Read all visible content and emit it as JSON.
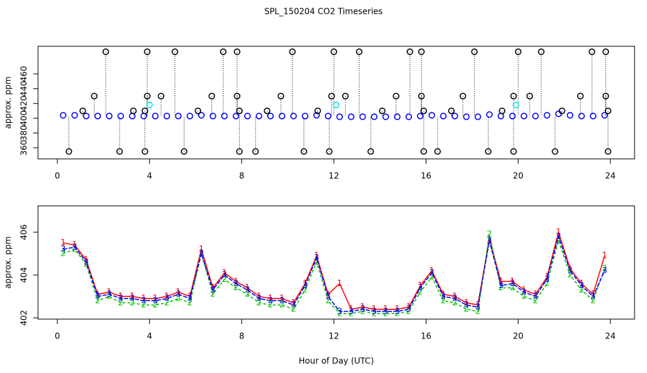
{
  "title": "SPL_150204  CO2 Timeseries",
  "chart_data": [
    {
      "type": "scatter",
      "ylabel": "approx. ppm",
      "xlim": [
        -0.84,
        25.05
      ],
      "xticks": [
        0,
        4,
        8,
        12,
        16,
        20,
        24
      ],
      "ylim": [
        345,
        497.4
      ],
      "yticks": [
        360,
        380,
        400,
        420,
        440,
        460
      ],
      "series": [
        {
          "color": "#0000ff",
          "x": [
            0.25,
            0.75,
            1.25,
            1.75,
            2.25,
            2.75,
            3.25,
            3.75,
            4.25,
            4.75,
            5.25,
            5.75,
            6.25,
            6.75,
            7.25,
            7.75,
            8.25,
            8.75,
            9.25,
            9.75,
            10.25,
            10.75,
            11.25,
            11.75,
            12.25,
            12.75,
            13.25,
            13.75,
            14.25,
            14.75,
            15.25,
            15.75,
            16.25,
            16.75,
            17.25,
            17.75,
            18.25,
            18.75,
            19.25,
            19.75,
            20.25,
            20.75,
            21.25,
            21.75,
            22.25,
            22.75,
            23.25,
            23.75
          ],
          "values": [
            404,
            404,
            403,
            403,
            403,
            403,
            403,
            403,
            403,
            403,
            403,
            403,
            404,
            403,
            403,
            403,
            403,
            403,
            403,
            403,
            403,
            403,
            404,
            403,
            402,
            402,
            402,
            402,
            402,
            402,
            402,
            403,
            404,
            403,
            403,
            402,
            402,
            405,
            403,
            403,
            403,
            403,
            404,
            406,
            404,
            403,
            403,
            404
          ]
        },
        {
          "color": "#000000",
          "x": [
            2.1,
            3.9,
            5.1,
            7.2,
            7.8,
            10.2,
            12.0,
            13.1,
            15.3,
            15.8,
            18.1,
            20.0,
            21.0,
            23.2,
            23.8,
            0.5,
            2.7,
            3.8,
            5.5,
            7.9,
            8.6,
            10.7,
            11.8,
            13.6,
            15.9,
            16.5,
            18.7,
            19.8,
            21.6,
            23.9,
            1.6,
            3.9,
            4.5,
            6.7,
            7.8,
            9.7,
            11.9,
            12.5,
            14.7,
            15.8,
            17.6,
            19.8,
            20.5,
            22.7,
            23.8,
            1.1,
            3.3,
            3.8,
            6.1,
            7.9,
            9.1,
            11.3,
            14.1,
            15.9,
            17.1,
            19.3,
            21.9,
            23.9
          ],
          "values": [
            490,
            490,
            490,
            490,
            490,
            490,
            490,
            490,
            490,
            490,
            490,
            490,
            490,
            490,
            490,
            355,
            355,
            355,
            355,
            355,
            355,
            355,
            355,
            355,
            355,
            355,
            355,
            355,
            355,
            355,
            430,
            430,
            430,
            430,
            430,
            430,
            430,
            430,
            430,
            430,
            430,
            430,
            430,
            430,
            430,
            410,
            410,
            410,
            410,
            410,
            410,
            410,
            410,
            410,
            410,
            410,
            410,
            410
          ]
        },
        {
          "color": "#00e5ee",
          "x": [
            4.0,
            12.1,
            19.9
          ],
          "values": [
            418,
            418,
            418
          ]
        }
      ]
    },
    {
      "type": "line",
      "ylabel": "approx. ppm",
      "xlabel": "Hour of Day (UTC)",
      "xlim": [
        -0.84,
        25.05
      ],
      "xticks": [
        0,
        4,
        8,
        12,
        16,
        20,
        24
      ],
      "ylim": [
        401.94,
        407.23
      ],
      "yticks": [
        402,
        404,
        406
      ],
      "series": [
        {
          "symbol": "1",
          "color": "#ff0000",
          "x": [
            0.25,
            0.75,
            1.25,
            1.75,
            2.25,
            2.75,
            3.25,
            3.75,
            4.25,
            4.75,
            5.25,
            5.75,
            6.25,
            6.75,
            7.25,
            7.75,
            8.25,
            8.75,
            9.25,
            9.75,
            10.25,
            10.75,
            11.25,
            11.75,
            12.25,
            12.75,
            13.25,
            13.75,
            14.25,
            14.75,
            15.25,
            15.75,
            16.25,
            16.75,
            17.25,
            17.75,
            18.25,
            18.75,
            19.25,
            19.75,
            20.25,
            20.75,
            21.25,
            21.75,
            22.25,
            22.75,
            23.25,
            23.75
          ],
          "values": [
            405.5,
            405.4,
            404.7,
            403.1,
            403.2,
            403.0,
            403.0,
            402.9,
            402.9,
            403.0,
            403.2,
            403.0,
            405.2,
            403.4,
            404.1,
            403.7,
            403.4,
            403.0,
            402.9,
            402.9,
            402.7,
            403.6,
            404.9,
            403.1,
            403.6,
            402.4,
            402.5,
            402.4,
            402.4,
            402.4,
            402.5,
            403.5,
            404.2,
            403.1,
            403.0,
            402.7,
            402.6,
            405.7,
            403.7,
            403.7,
            403.3,
            403.1,
            403.9,
            406.0,
            404.3,
            403.6,
            403.1,
            404.9
          ]
        },
        {
          "symbol": "2",
          "color": "#00c000",
          "x": [
            0.25,
            0.75,
            1.25,
            1.75,
            2.25,
            2.75,
            3.25,
            3.75,
            4.25,
            4.75,
            5.25,
            5.75,
            6.25,
            6.75,
            7.25,
            7.75,
            8.25,
            8.75,
            9.25,
            9.75,
            10.25,
            10.75,
            11.25,
            11.75,
            12.25,
            12.75,
            13.25,
            13.75,
            14.25,
            14.75,
            15.25,
            15.75,
            16.25,
            16.75,
            17.25,
            17.75,
            18.25,
            18.75,
            19.25,
            19.75,
            20.25,
            20.75,
            21.25,
            21.75,
            22.25,
            22.75,
            23.25,
            23.75
          ],
          "values": [
            405.0,
            405.2,
            404.5,
            402.8,
            403.0,
            402.7,
            402.7,
            402.6,
            402.6,
            402.7,
            402.9,
            402.7,
            405.0,
            403.1,
            403.8,
            403.4,
            403.1,
            402.7,
            402.6,
            402.6,
            402.4,
            403.3,
            404.6,
            402.8,
            402.2,
            402.2,
            402.3,
            402.2,
            402.2,
            402.2,
            402.3,
            403.2,
            403.9,
            402.8,
            402.7,
            402.4,
            402.3,
            405.9,
            403.4,
            403.4,
            403.0,
            402.8,
            403.6,
            405.6,
            404.0,
            403.3,
            402.8,
            404.3
          ]
        },
        {
          "symbol": "3",
          "color": "#0000ff",
          "x": [
            0.25,
            0.75,
            1.25,
            1.75,
            2.25,
            2.75,
            3.25,
            3.75,
            4.25,
            4.75,
            5.25,
            5.75,
            6.25,
            6.75,
            7.25,
            7.75,
            8.25,
            8.75,
            9.25,
            9.75,
            10.25,
            10.75,
            11.25,
            11.75,
            12.25,
            12.75,
            13.25,
            13.75,
            14.25,
            14.75,
            15.25,
            15.75,
            16.25,
            16.75,
            17.25,
            17.75,
            18.25,
            18.75,
            19.25,
            19.75,
            20.25,
            20.75,
            21.25,
            21.75,
            22.25,
            22.75,
            23.25,
            23.75
          ],
          "values": [
            405.2,
            405.3,
            404.6,
            403.0,
            403.1,
            402.9,
            402.9,
            402.8,
            402.8,
            402.9,
            403.1,
            402.9,
            405.0,
            403.3,
            404.0,
            403.6,
            403.3,
            402.9,
            402.8,
            402.8,
            402.6,
            403.5,
            404.8,
            403.0,
            402.3,
            402.3,
            402.4,
            402.3,
            402.3,
            402.3,
            402.4,
            403.4,
            404.1,
            403.0,
            402.9,
            402.6,
            402.5,
            405.6,
            403.5,
            403.6,
            403.2,
            403.0,
            403.8,
            405.8,
            404.2,
            403.5,
            403.0,
            404.2
          ]
        }
      ]
    }
  ]
}
